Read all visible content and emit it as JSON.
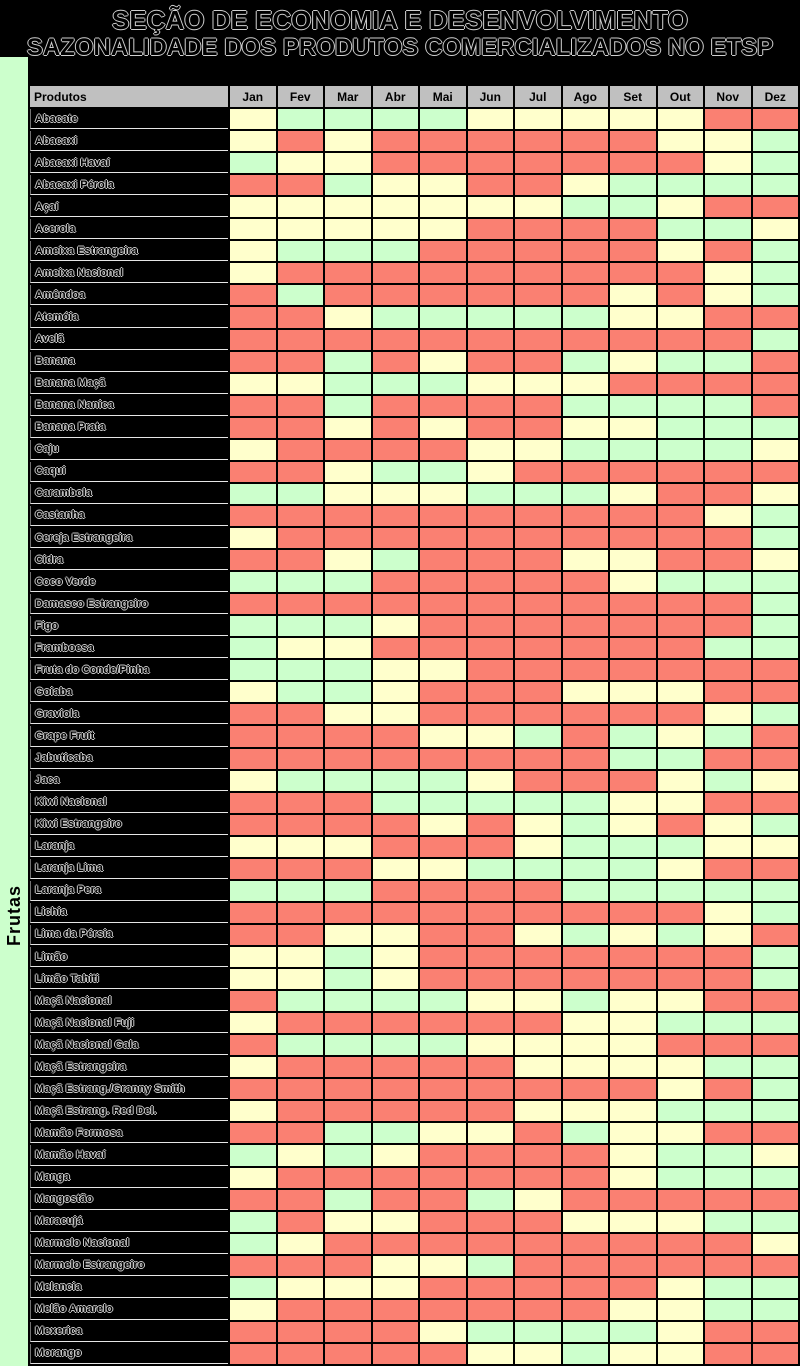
{
  "title": "SEÇÃO DE ECONOMIA E DESENVOLVIMENTO",
  "subtitle": "SAZONALIDADE DOS PRODUTOS COMERCIALIZADOS NO ETSP",
  "chart_data": {
    "type": "heatmap",
    "title": "SEÇÃO DE ECONOMIA E DESENVOLVIMENTO",
    "subtitle": "SAZONALIDADE DOS PRODUTOS COMERCIALIZADOS NO ETSP",
    "row_group_label": "Frutas",
    "corner_header": "Produtos",
    "columns": [
      "Jan",
      "Fev",
      "Mar",
      "Abr",
      "Mai",
      "Jun",
      "Jul",
      "Ago",
      "Set",
      "Out",
      "Nov",
      "Dez"
    ],
    "cell_colors": {
      "R": "#FA8072",
      "Y": "#FFFFCC",
      "G": "#CCFFCC"
    },
    "header_bg": "#C0C0C0",
    "strip_bg": "#CCFFCC",
    "products": [
      {
        "name": "Abacate",
        "seasons": [
          "Y",
          "G",
          "G",
          "G",
          "G",
          "Y",
          "Y",
          "Y",
          "Y",
          "Y",
          "R",
          "R"
        ]
      },
      {
        "name": "Abacaxi",
        "seasons": [
          "Y",
          "R",
          "Y",
          "R",
          "R",
          "R",
          "R",
          "R",
          "R",
          "Y",
          "Y",
          "G"
        ]
      },
      {
        "name": "Abacaxi Havaí",
        "seasons": [
          "G",
          "Y",
          "Y",
          "R",
          "R",
          "R",
          "R",
          "R",
          "R",
          "R",
          "Y",
          "G"
        ]
      },
      {
        "name": "Abacaxi Pérola",
        "seasons": [
          "R",
          "R",
          "G",
          "Y",
          "Y",
          "R",
          "R",
          "Y",
          "G",
          "G",
          "G",
          "G"
        ]
      },
      {
        "name": "Açaí",
        "seasons": [
          "Y",
          "Y",
          "Y",
          "Y",
          "Y",
          "Y",
          "Y",
          "G",
          "G",
          "Y",
          "R",
          "R"
        ]
      },
      {
        "name": "Acerola",
        "seasons": [
          "Y",
          "Y",
          "Y",
          "Y",
          "Y",
          "R",
          "R",
          "R",
          "R",
          "G",
          "G",
          "Y"
        ]
      },
      {
        "name": "Ameixa Estrangeira",
        "seasons": [
          "Y",
          "G",
          "G",
          "G",
          "R",
          "R",
          "R",
          "R",
          "R",
          "Y",
          "R",
          "G"
        ]
      },
      {
        "name": "Ameixa Nacional",
        "seasons": [
          "Y",
          "R",
          "R",
          "R",
          "R",
          "R",
          "R",
          "R",
          "R",
          "R",
          "Y",
          "G"
        ]
      },
      {
        "name": "Amêndoa",
        "seasons": [
          "R",
          "G",
          "R",
          "R",
          "R",
          "R",
          "R",
          "R",
          "Y",
          "R",
          "Y",
          "G"
        ]
      },
      {
        "name": "Atemóia",
        "seasons": [
          "R",
          "R",
          "Y",
          "G",
          "G",
          "G",
          "G",
          "G",
          "Y",
          "Y",
          "R",
          "R"
        ]
      },
      {
        "name": "Avelã",
        "seasons": [
          "R",
          "R",
          "R",
          "R",
          "R",
          "R",
          "R",
          "R",
          "R",
          "R",
          "R",
          "G"
        ]
      },
      {
        "name": "Banana",
        "seasons": [
          "R",
          "R",
          "G",
          "R",
          "Y",
          "R",
          "R",
          "G",
          "Y",
          "G",
          "G",
          "R"
        ]
      },
      {
        "name": "Banana Maçã",
        "seasons": [
          "Y",
          "Y",
          "G",
          "G",
          "G",
          "Y",
          "Y",
          "Y",
          "R",
          "R",
          "R",
          "R"
        ]
      },
      {
        "name": "Banana Nanica",
        "seasons": [
          "R",
          "R",
          "G",
          "R",
          "R",
          "R",
          "R",
          "G",
          "G",
          "G",
          "G",
          "R"
        ]
      },
      {
        "name": "Banana Prata",
        "seasons": [
          "R",
          "R",
          "Y",
          "R",
          "Y",
          "R",
          "R",
          "Y",
          "Y",
          "G",
          "G",
          "G"
        ]
      },
      {
        "name": "Caju",
        "seasons": [
          "Y",
          "R",
          "R",
          "R",
          "R",
          "Y",
          "Y",
          "G",
          "G",
          "G",
          "G",
          "Y"
        ]
      },
      {
        "name": "Caqui",
        "seasons": [
          "R",
          "R",
          "Y",
          "G",
          "G",
          "Y",
          "R",
          "R",
          "R",
          "R",
          "R",
          "R"
        ]
      },
      {
        "name": "Carambola",
        "seasons": [
          "G",
          "G",
          "Y",
          "Y",
          "Y",
          "G",
          "G",
          "G",
          "Y",
          "R",
          "R",
          "Y"
        ]
      },
      {
        "name": "Castanha",
        "seasons": [
          "R",
          "R",
          "R",
          "R",
          "R",
          "R",
          "R",
          "R",
          "R",
          "R",
          "Y",
          "G"
        ]
      },
      {
        "name": "Cereja Estrangeira",
        "seasons": [
          "Y",
          "R",
          "R",
          "R",
          "R",
          "R",
          "R",
          "R",
          "R",
          "R",
          "R",
          "G"
        ]
      },
      {
        "name": "Cidra",
        "seasons": [
          "R",
          "R",
          "Y",
          "G",
          "R",
          "R",
          "R",
          "Y",
          "Y",
          "R",
          "R",
          "Y"
        ]
      },
      {
        "name": "Coco Verde",
        "seasons": [
          "G",
          "G",
          "G",
          "R",
          "R",
          "R",
          "R",
          "R",
          "Y",
          "G",
          "G",
          "G"
        ]
      },
      {
        "name": "Damasco Estrangeiro",
        "seasons": [
          "R",
          "R",
          "R",
          "R",
          "R",
          "R",
          "R",
          "R",
          "R",
          "R",
          "R",
          "G"
        ]
      },
      {
        "name": "Figo",
        "seasons": [
          "G",
          "G",
          "G",
          "Y",
          "R",
          "R",
          "R",
          "R",
          "R",
          "R",
          "R",
          "G"
        ]
      },
      {
        "name": "Framboesa",
        "seasons": [
          "G",
          "Y",
          "Y",
          "R",
          "R",
          "R",
          "R",
          "R",
          "R",
          "R",
          "G",
          "G"
        ]
      },
      {
        "name": "Fruta do Conde/Pinha",
        "seasons": [
          "G",
          "G",
          "G",
          "Y",
          "Y",
          "R",
          "R",
          "R",
          "R",
          "R",
          "R",
          "R"
        ]
      },
      {
        "name": "Goiaba",
        "seasons": [
          "Y",
          "G",
          "G",
          "Y",
          "R",
          "R",
          "R",
          "Y",
          "Y",
          "Y",
          "R",
          "R"
        ]
      },
      {
        "name": "Graviola",
        "seasons": [
          "R",
          "R",
          "Y",
          "Y",
          "R",
          "R",
          "R",
          "R",
          "R",
          "R",
          "Y",
          "G"
        ]
      },
      {
        "name": "Grape Fruit",
        "seasons": [
          "R",
          "R",
          "R",
          "R",
          "Y",
          "Y",
          "G",
          "R",
          "G",
          "Y",
          "G",
          "R"
        ]
      },
      {
        "name": "Jabuticaba",
        "seasons": [
          "R",
          "R",
          "R",
          "R",
          "R",
          "R",
          "R",
          "R",
          "G",
          "G",
          "R",
          "R"
        ]
      },
      {
        "name": "Jaca",
        "seasons": [
          "Y",
          "G",
          "G",
          "G",
          "G",
          "Y",
          "R",
          "R",
          "R",
          "Y",
          "G",
          "Y"
        ]
      },
      {
        "name": "Kiwi Nacional",
        "seasons": [
          "R",
          "R",
          "R",
          "G",
          "G",
          "G",
          "G",
          "G",
          "Y",
          "Y",
          "R",
          "R"
        ]
      },
      {
        "name": "Kiwi Estrangeiro",
        "seasons": [
          "R",
          "R",
          "R",
          "R",
          "Y",
          "R",
          "Y",
          "G",
          "Y",
          "R",
          "Y",
          "G"
        ]
      },
      {
        "name": "Laranja",
        "seasons": [
          "Y",
          "Y",
          "Y",
          "R",
          "R",
          "R",
          "Y",
          "G",
          "G",
          "G",
          "Y",
          "Y"
        ]
      },
      {
        "name": "Laranja Lima",
        "seasons": [
          "R",
          "R",
          "R",
          "Y",
          "Y",
          "G",
          "G",
          "G",
          "G",
          "Y",
          "R",
          "R"
        ]
      },
      {
        "name": "Laranja Pera",
        "seasons": [
          "G",
          "G",
          "G",
          "R",
          "R",
          "R",
          "R",
          "G",
          "G",
          "G",
          "G",
          "G"
        ]
      },
      {
        "name": "Lichia",
        "seasons": [
          "R",
          "R",
          "R",
          "R",
          "R",
          "R",
          "R",
          "R",
          "R",
          "R",
          "Y",
          "G"
        ]
      },
      {
        "name": "Lima da Pérsia",
        "seasons": [
          "R",
          "R",
          "Y",
          "Y",
          "R",
          "R",
          "Y",
          "G",
          "Y",
          "G",
          "Y",
          "R"
        ]
      },
      {
        "name": "Limão",
        "seasons": [
          "Y",
          "Y",
          "G",
          "Y",
          "R",
          "R",
          "R",
          "R",
          "R",
          "R",
          "R",
          "G"
        ]
      },
      {
        "name": "Limão Tahiti",
        "seasons": [
          "Y",
          "Y",
          "G",
          "Y",
          "R",
          "R",
          "R",
          "R",
          "R",
          "R",
          "R",
          "G"
        ]
      },
      {
        "name": "Maçã Nacional",
        "seasons": [
          "R",
          "G",
          "G",
          "G",
          "G",
          "Y",
          "Y",
          "G",
          "Y",
          "Y",
          "R",
          "R"
        ]
      },
      {
        "name": "Maçã Nacional Fuji",
        "seasons": [
          "Y",
          "R",
          "R",
          "R",
          "R",
          "R",
          "R",
          "Y",
          "Y",
          "G",
          "G",
          "G"
        ]
      },
      {
        "name": "Maçã Nacional Gala",
        "seasons": [
          "R",
          "G",
          "G",
          "G",
          "G",
          "Y",
          "Y",
          "Y",
          "Y",
          "R",
          "R",
          "R"
        ]
      },
      {
        "name": "Maçã Estrangeira",
        "seasons": [
          "Y",
          "R",
          "R",
          "R",
          "R",
          "R",
          "Y",
          "Y",
          "Y",
          "Y",
          "G",
          "G"
        ]
      },
      {
        "name": "Maçã Estrang./Granny Smith",
        "seasons": [
          "R",
          "R",
          "R",
          "R",
          "R",
          "R",
          "R",
          "R",
          "R",
          "Y",
          "R",
          "G"
        ]
      },
      {
        "name": "Maçã Estrang. Red Del.",
        "seasons": [
          "Y",
          "R",
          "R",
          "R",
          "R",
          "R",
          "Y",
          "Y",
          "Y",
          "G",
          "G",
          "G"
        ]
      },
      {
        "name": "Mamão Formosa",
        "seasons": [
          "R",
          "R",
          "G",
          "G",
          "Y",
          "Y",
          "R",
          "G",
          "Y",
          "Y",
          "R",
          "R"
        ]
      },
      {
        "name": "Mamão Havaí",
        "seasons": [
          "G",
          "Y",
          "G",
          "Y",
          "R",
          "R",
          "R",
          "R",
          "Y",
          "G",
          "G",
          "Y"
        ]
      },
      {
        "name": "Manga",
        "seasons": [
          "Y",
          "R",
          "R",
          "R",
          "R",
          "R",
          "R",
          "R",
          "Y",
          "G",
          "G",
          "G"
        ]
      },
      {
        "name": "Mangostão",
        "seasons": [
          "R",
          "R",
          "G",
          "R",
          "R",
          "G",
          "Y",
          "R",
          "R",
          "R",
          "R",
          "R"
        ]
      },
      {
        "name": "Maracujá",
        "seasons": [
          "G",
          "R",
          "Y",
          "Y",
          "R",
          "R",
          "R",
          "Y",
          "Y",
          "Y",
          "G",
          "G"
        ]
      },
      {
        "name": "Marmelo Nacional",
        "seasons": [
          "G",
          "Y",
          "R",
          "R",
          "R",
          "R",
          "R",
          "R",
          "R",
          "R",
          "R",
          "Y"
        ]
      },
      {
        "name": "Marmelo Estrangeiro",
        "seasons": [
          "R",
          "R",
          "R",
          "Y",
          "Y",
          "G",
          "R",
          "R",
          "R",
          "R",
          "R",
          "R"
        ]
      },
      {
        "name": "Melancia",
        "seasons": [
          "G",
          "Y",
          "Y",
          "Y",
          "R",
          "R",
          "R",
          "R",
          "R",
          "Y",
          "G",
          "G"
        ]
      },
      {
        "name": "Melão Amarelo",
        "seasons": [
          "Y",
          "R",
          "R",
          "R",
          "R",
          "R",
          "R",
          "R",
          "Y",
          "Y",
          "G",
          "G"
        ]
      },
      {
        "name": "Mexerica",
        "seasons": [
          "R",
          "R",
          "R",
          "R",
          "Y",
          "G",
          "G",
          "G",
          "G",
          "Y",
          "R",
          "R"
        ]
      },
      {
        "name": "Morango",
        "seasons": [
          "R",
          "R",
          "R",
          "R",
          "R",
          "Y",
          "Y",
          "G",
          "Y",
          "Y",
          "R",
          "R"
        ]
      }
    ]
  }
}
